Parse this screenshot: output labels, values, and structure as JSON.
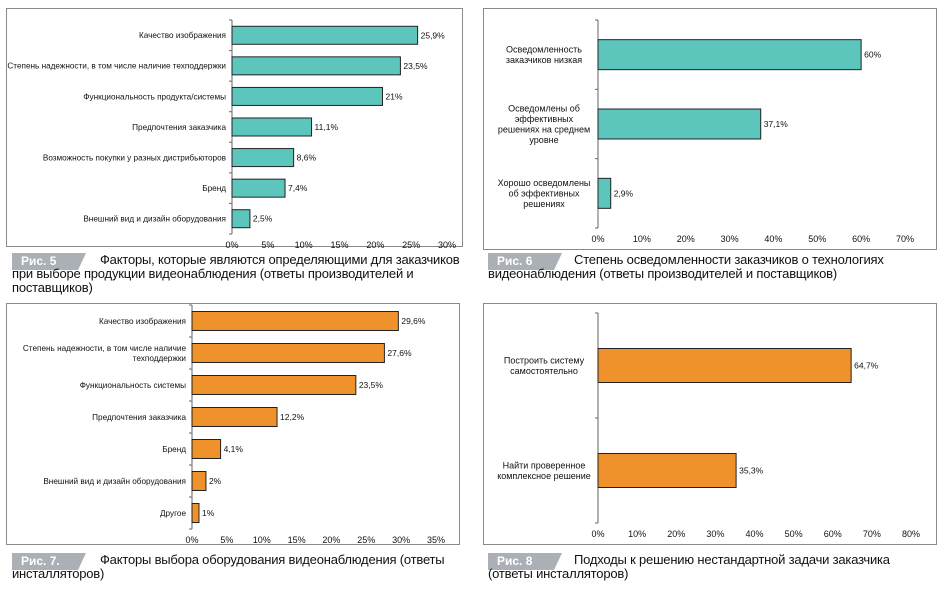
{
  "figures": [
    {
      "badge": "Рис. 5",
      "caption": "Факторы, которые являются определяющими для заказчиков при выборе продукции видеонаблюдения (ответы производителей и поставщиков)"
    },
    {
      "badge": "Рис. 6",
      "caption": "Степень осведомленности заказчиков о технологиях видеонаблюдения (ответы производителей и поставщиков)"
    },
    {
      "badge": "Рис. 7.",
      "caption": "Факторы выбора оборудования видеонаблюдения (ответы инсталляторов)"
    },
    {
      "badge": "Рис. 8",
      "caption": "Подходы к решению нестандартной задачи заказчика (ответы инсталляторов)"
    }
  ],
  "colors": {
    "teal": "#5cc6bd",
    "orange": "#f0922b",
    "badge": "#aab0b6",
    "bar_stroke": "#222222"
  },
  "chart_data": [
    {
      "type": "bar",
      "orientation": "horizontal",
      "categories": [
        "Качество изображения",
        "Степень надежности, в том числе наличие техподдержки",
        "Функциональность продукта/системы",
        "Предпочтения заказчика",
        "Возможность покупки у разных дистрибьюторов",
        "Бренд",
        "Внешний вид и дизайн оборудования"
      ],
      "values": [
        25.9,
        23.5,
        21,
        11.1,
        8.6,
        7.4,
        2.5
      ],
      "value_labels": [
        "25,9%",
        "23,5%",
        "21%",
        "11,1%",
        "8,6%",
        "7,4%",
        "2,5%"
      ],
      "xlim": [
        0,
        30
      ],
      "x_ticks": [
        "0%",
        "5%",
        "10%",
        "15%",
        "20%",
        "25%",
        "30%"
      ],
      "color": "#5cc6bd",
      "grid": false
    },
    {
      "type": "bar",
      "orientation": "horizontal",
      "categories": [
        "Осведомленность заказчиков низкая",
        "Осведомлены об эффективных решениях на среднем уровне",
        "Хорошо осведомлены об эффективных решениях"
      ],
      "values": [
        60,
        37.1,
        2.9
      ],
      "value_labels": [
        "60%",
        "37,1%",
        "2,9%"
      ],
      "xlim": [
        0,
        70
      ],
      "x_ticks": [
        "0%",
        "10%",
        "20%",
        "30%",
        "40%",
        "50%",
        "60%",
        "70%"
      ],
      "color": "#5cc6bd",
      "grid": false
    },
    {
      "type": "bar",
      "orientation": "horizontal",
      "categories": [
        "Качество изображения",
        "Степень надежности, в том числе наличие техподдержки",
        "Функциональность системы",
        "Предпочтения заказчика",
        "Бренд",
        "Внешний вид и дизайн оборудования",
        "Другое"
      ],
      "values": [
        29.6,
        27.6,
        23.5,
        12.2,
        4.1,
        2,
        1
      ],
      "value_labels": [
        "29,6%",
        "27,6%",
        "23,5%",
        "12,2%",
        "4,1%",
        "2%",
        "1%"
      ],
      "xlim": [
        0,
        35
      ],
      "x_ticks": [
        "0%",
        "5%",
        "10%",
        "15%",
        "20%",
        "25%",
        "30%",
        "35%"
      ],
      "color": "#f0922b",
      "grid": false
    },
    {
      "type": "bar",
      "orientation": "horizontal",
      "categories": [
        "Построить систему самостоятельно",
        "Найти проверенное комплексное решение"
      ],
      "values": [
        64.7,
        35.3
      ],
      "value_labels": [
        "64,7%",
        "35,3%"
      ],
      "xlim": [
        0,
        80
      ],
      "x_ticks": [
        "0%",
        "10%",
        "20%",
        "30%",
        "40%",
        "50%",
        "60%",
        "70%",
        "80%"
      ],
      "color": "#f0922b",
      "grid": false
    }
  ]
}
